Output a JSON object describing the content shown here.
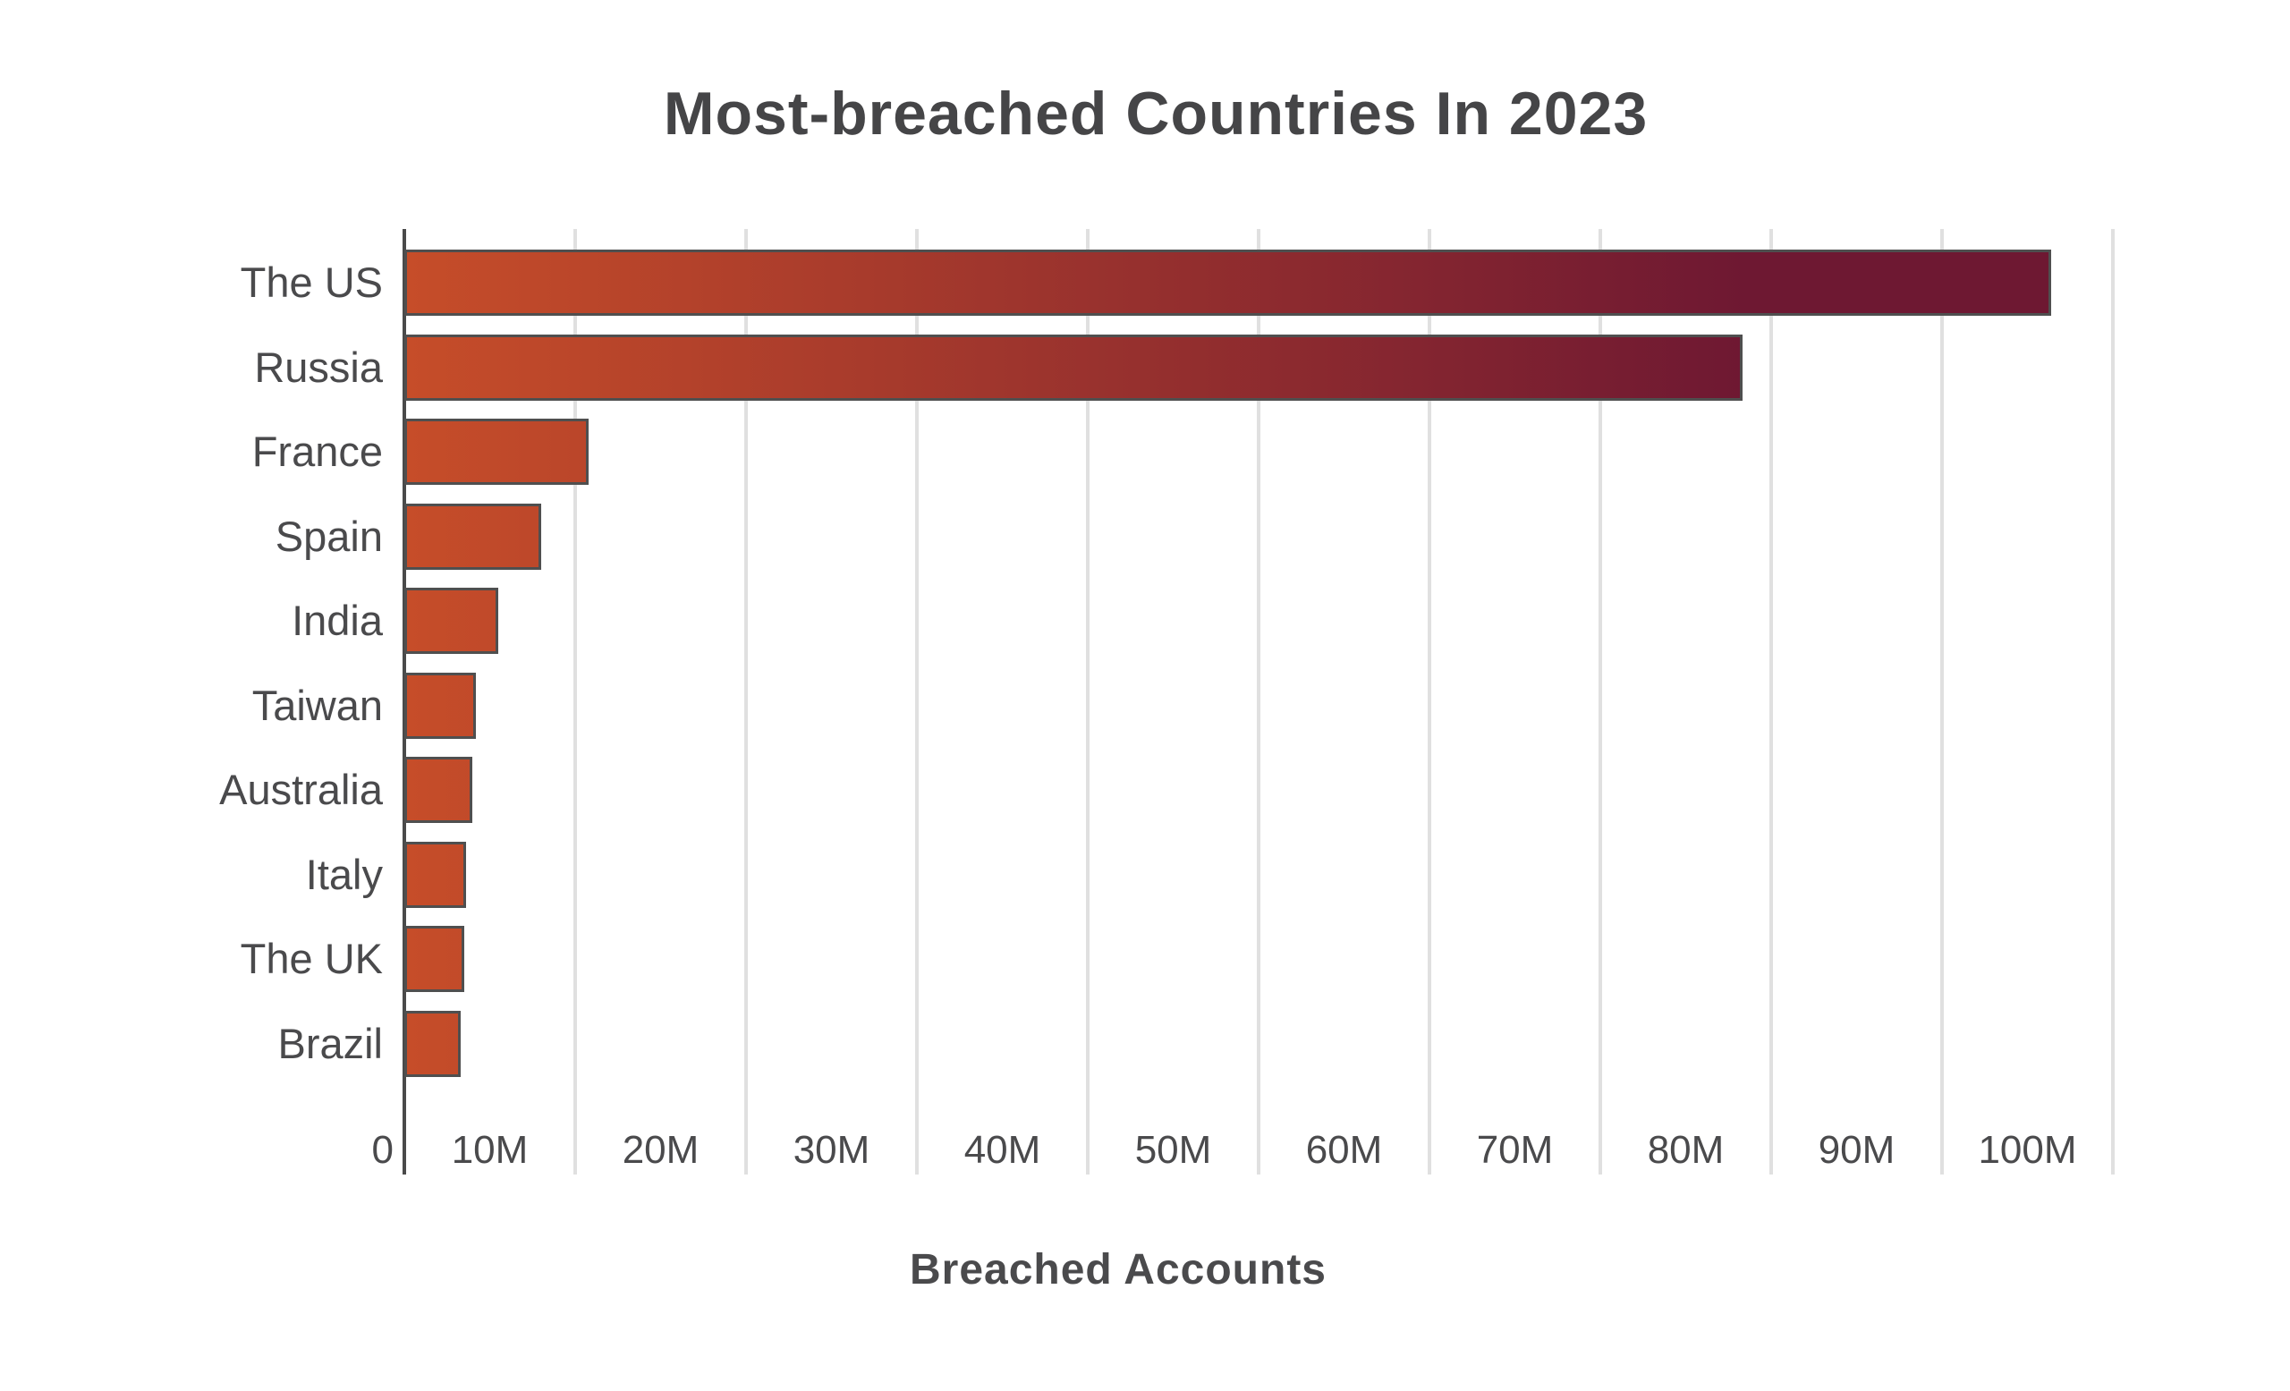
{
  "title": "Most-breached Countries In 2023",
  "chart_data": {
    "type": "bar",
    "orientation": "horizontal",
    "title": "Most-breached Countries In 2023",
    "xlabel": "Breached Accounts",
    "categories": [
      "The US",
      "Russia",
      "France",
      "Spain",
      "India",
      "Taiwan",
      "Australia",
      "Italy",
      "The UK",
      "Brazil"
    ],
    "values": [
      96.4,
      78.3,
      10.8,
      8.0,
      5.5,
      4.2,
      4.0,
      3.6,
      3.5,
      3.3
    ],
    "values_unit": "millions of breached accounts",
    "x_ticks": [
      "0",
      "10M",
      "20M",
      "30M",
      "40M",
      "50M",
      "60M",
      "70M",
      "80M",
      "90M",
      "100M"
    ],
    "xlim_millions": [
      0,
      110
    ],
    "grid": "vertical gridlines every 10M, tick labels centered between gridlines",
    "legend": "none",
    "colors": {
      "bar_gradient_start": "#C64D29",
      "bar_gradient_end": "#6E1832",
      "bar_border": "#4F4F4F",
      "axis_line": "#4A4A4A",
      "gridline": "#E0E0E0",
      "text": "#4A4A4C",
      "background": "#FFFFFF"
    }
  }
}
